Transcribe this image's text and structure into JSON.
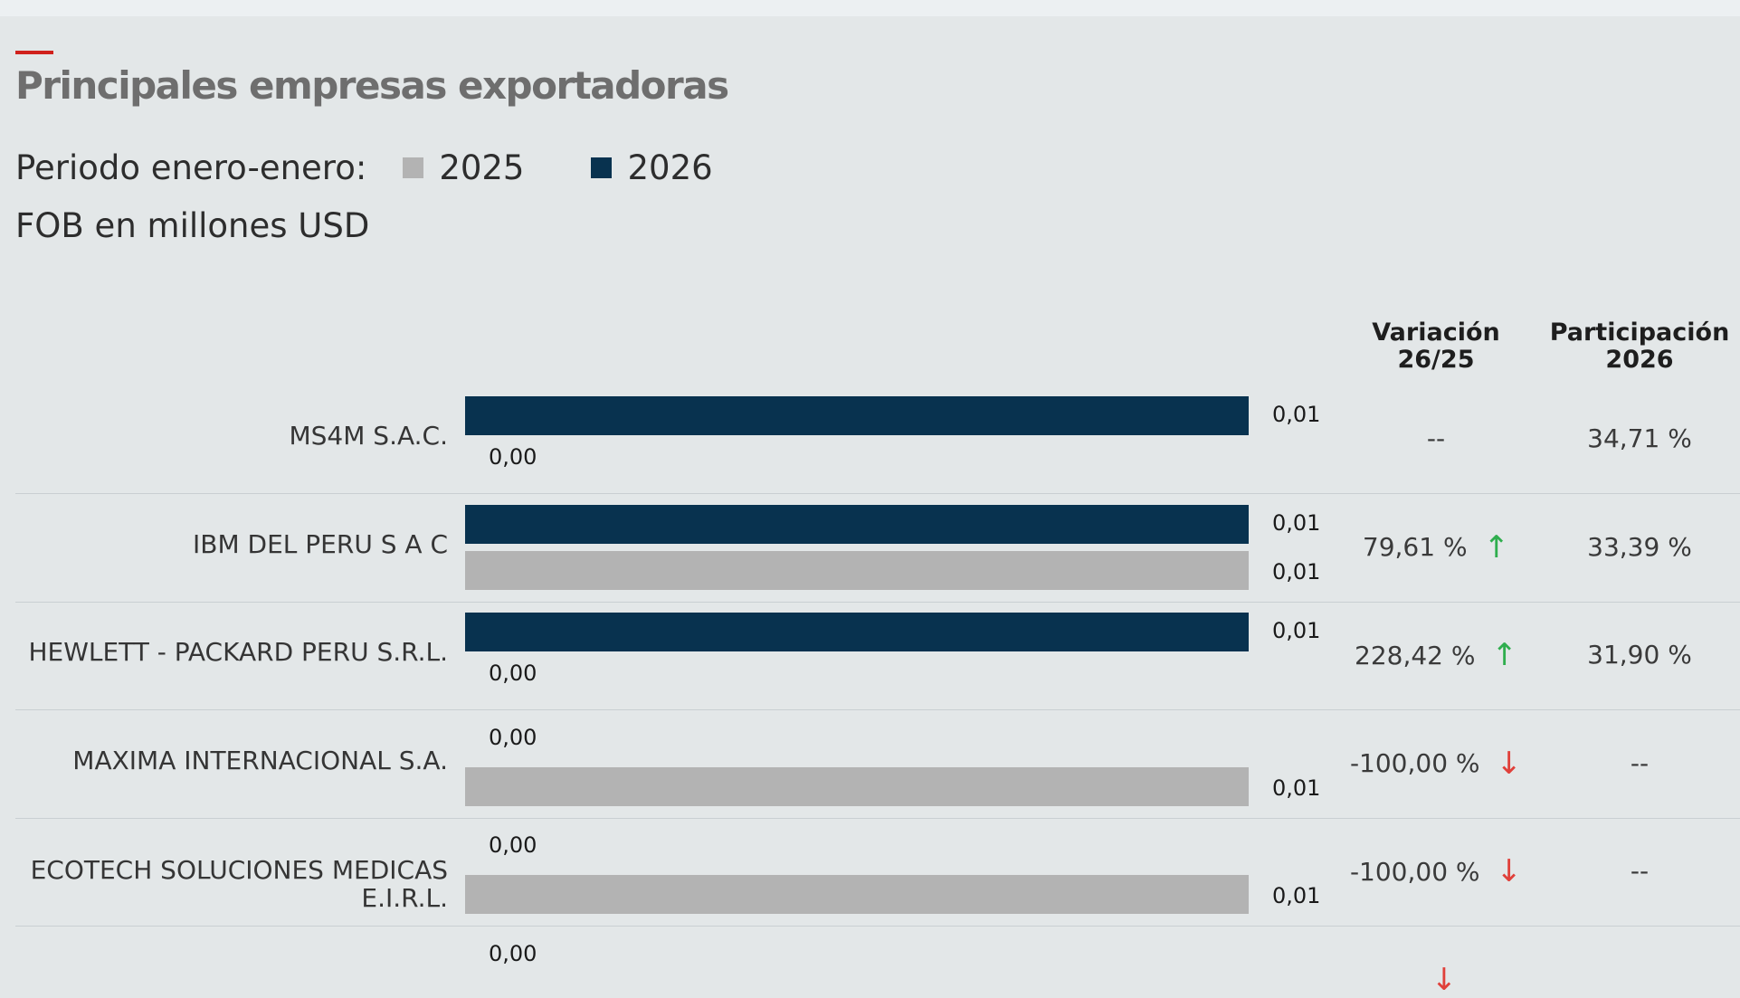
{
  "title": "Principales empresas exportadoras",
  "period_label": "Periodo enero-enero:",
  "unit_label": "FOB en millones USD",
  "header": {
    "variation": [
      "Variación",
      "26/25"
    ],
    "share": [
      "Participación",
      "2026"
    ]
  },
  "colors": {
    "accent": "#d0211c",
    "series_2025": "#b3b3b3",
    "series_2026": "#08324f",
    "up_arrow": "#2fae4e",
    "down_arrow": "#e0403a"
  },
  "chart_data": {
    "type": "bar",
    "orientation": "horizontal",
    "legend": [
      "2025",
      "2026"
    ],
    "categories": [
      "MS4M S.A.C.",
      "IBM DEL PERU S A C",
      "HEWLETT - PACKARD PERU S.R.L.",
      "MAXIMA INTERNACIONAL S.A.",
      "ECOTECH SOLUCIONES MEDICAS E.I.R.L.",
      ""
    ],
    "series": [
      {
        "name": "2026",
        "values": [
          0.01,
          0.01,
          0.01,
          0.0,
          0.0,
          0.0
        ],
        "labels": [
          "0,01",
          "0,01",
          "0,01",
          "0,00",
          "0,00",
          "0,00"
        ]
      },
      {
        "name": "2025",
        "values": [
          0.0,
          0.01,
          0.0,
          0.01,
          0.01,
          null
        ],
        "labels": [
          "0,00",
          "0,01",
          "0,00",
          "0,01",
          "0,01",
          null
        ]
      }
    ],
    "variation": [
      {
        "text": "--",
        "trend": null
      },
      {
        "text": "79,61 %",
        "trend": "up"
      },
      {
        "text": "228,42 %",
        "trend": "up"
      },
      {
        "text": "-100,00 %",
        "trend": "down"
      },
      {
        "text": "-100,00 %",
        "trend": "down"
      },
      {
        "text": "",
        "trend": "down"
      }
    ],
    "share_2026": [
      "34,71 %",
      "33,39 %",
      "31,90 %",
      "--",
      "--",
      ""
    ],
    "xlim": [
      0,
      0.01
    ],
    "grid": false
  }
}
